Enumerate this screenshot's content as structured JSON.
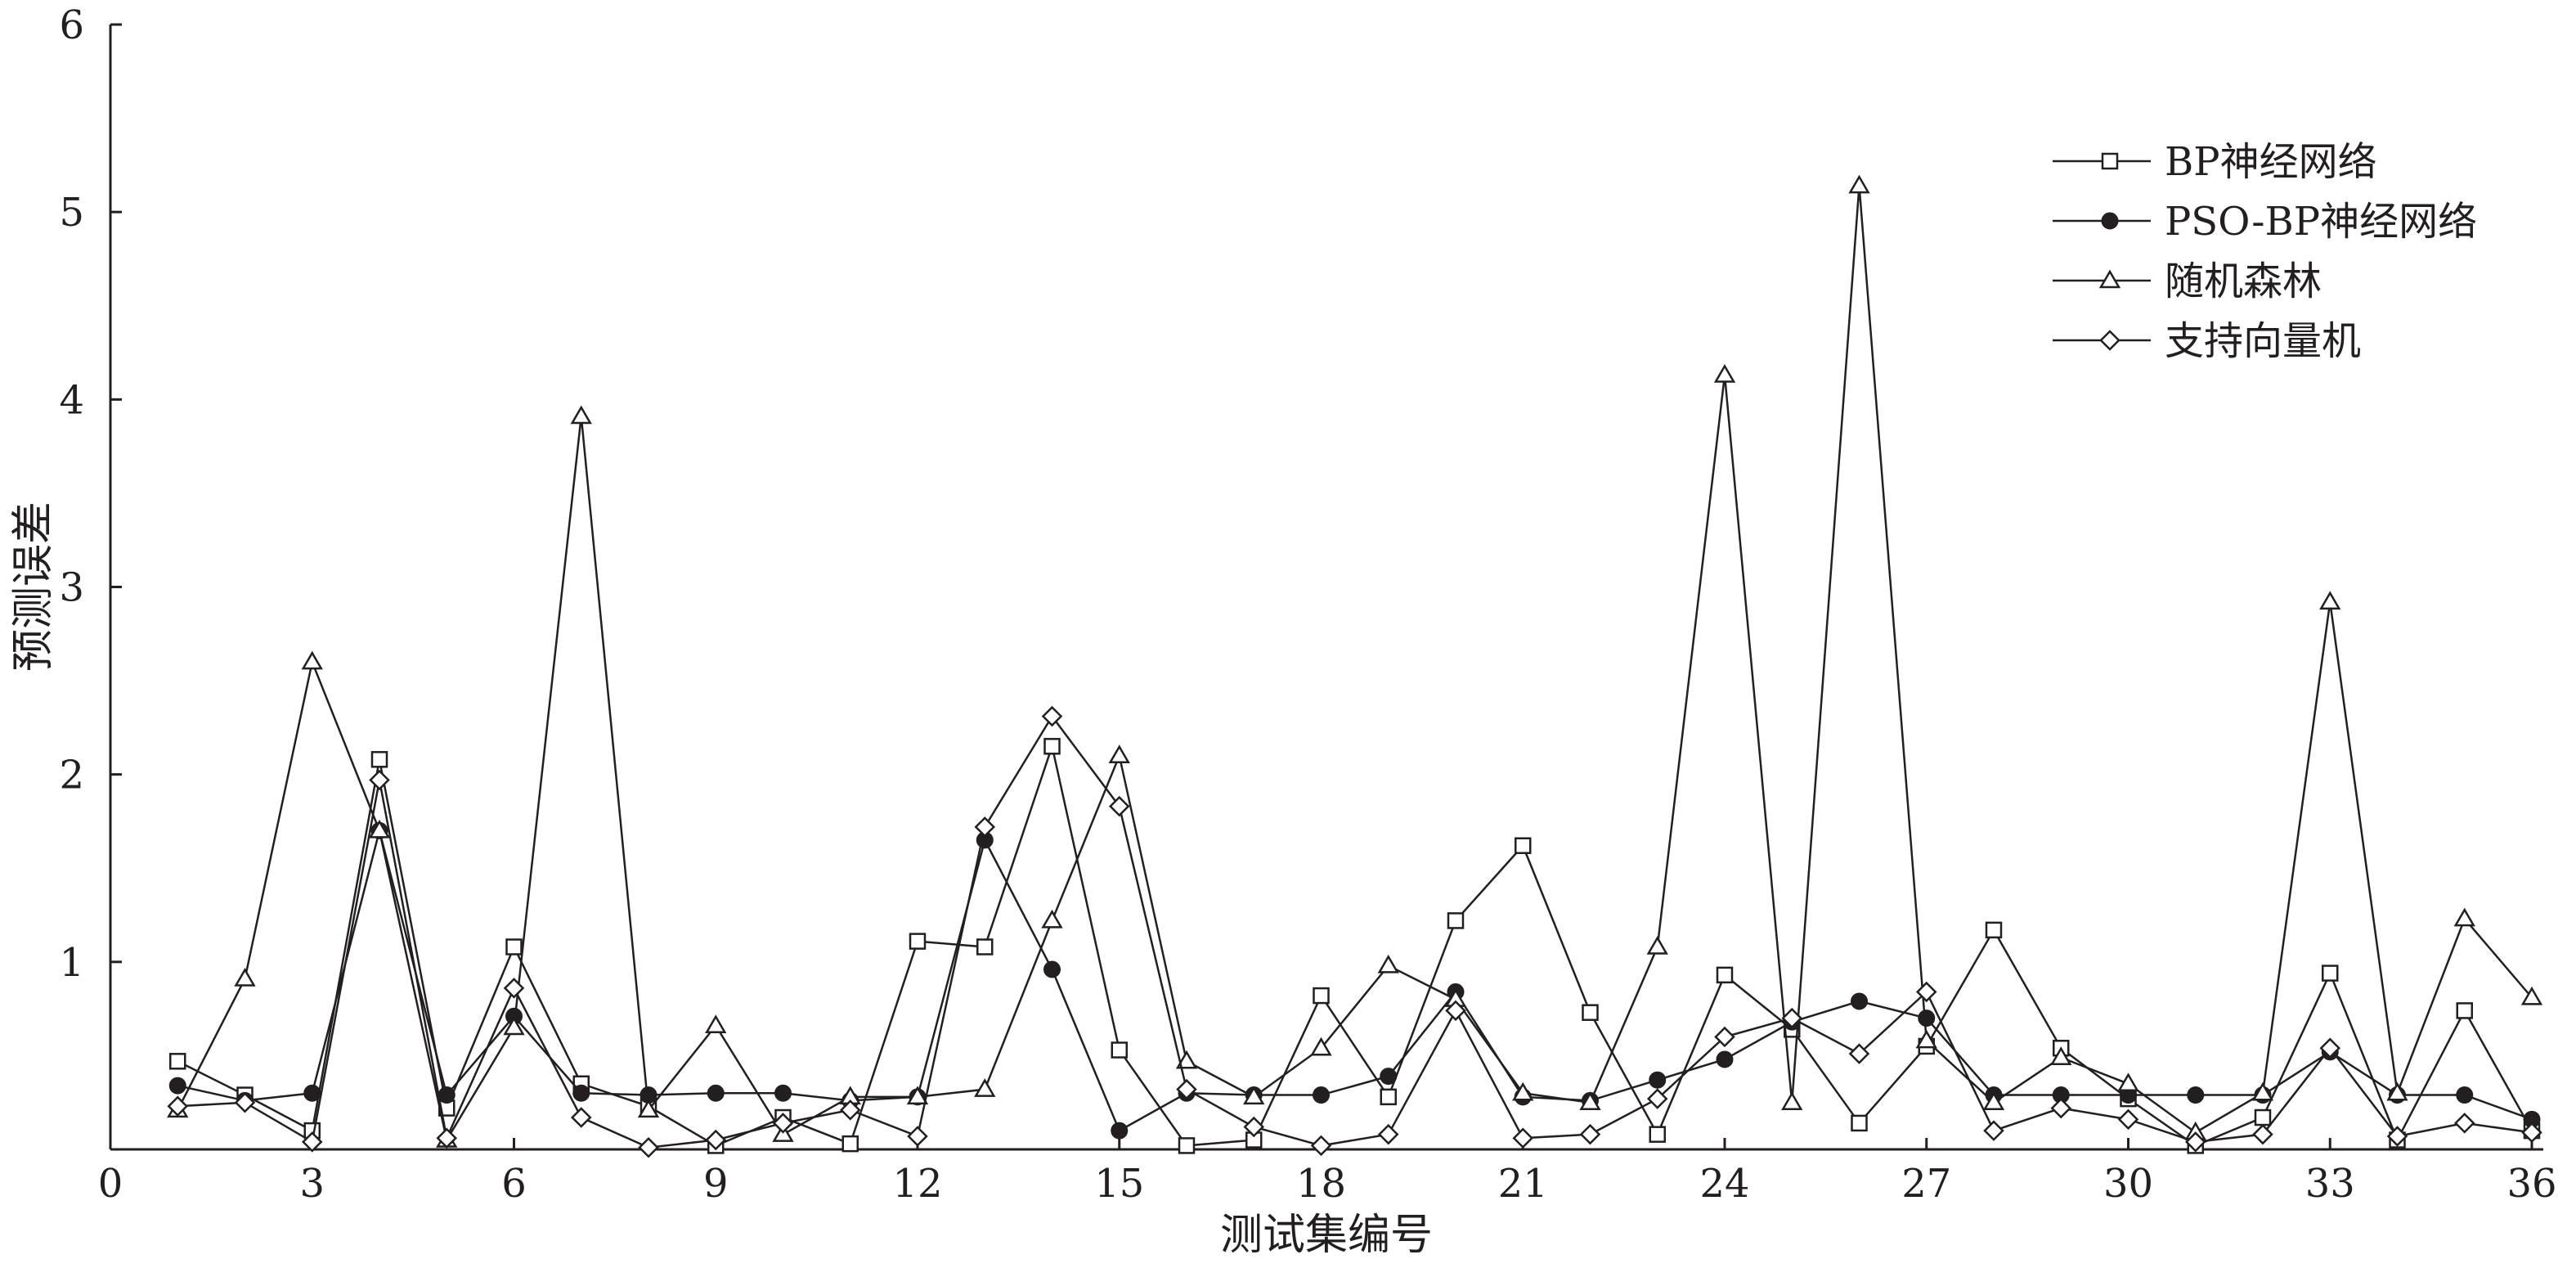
{
  "chart_data": {
    "type": "line",
    "title": "",
    "xlabel": "测试集编号",
    "ylabel": "预测误差",
    "xlim": [
      0,
      36
    ],
    "ylim": [
      0,
      6
    ],
    "xticks": [
      0,
      3,
      6,
      9,
      12,
      15,
      18,
      21,
      24,
      27,
      30,
      33,
      36
    ],
    "yticks": [
      1,
      2,
      3,
      4,
      5,
      6
    ],
    "grid": false,
    "legend_position": "top-right",
    "x": [
      1,
      2,
      3,
      4,
      5,
      6,
      7,
      8,
      9,
      10,
      11,
      12,
      13,
      14,
      15,
      16,
      17,
      18,
      19,
      20,
      21,
      22,
      23,
      24,
      25,
      26,
      27,
      28,
      29,
      30,
      31,
      32,
      33,
      34,
      35,
      36
    ],
    "series": [
      {
        "name": "BP神经网络",
        "marker": "square-open",
        "values": [
          0.47,
          0.29,
          0.1,
          2.08,
          0.22,
          1.08,
          0.35,
          0.23,
          0.02,
          0.17,
          0.03,
          1.11,
          1.08,
          2.15,
          0.53,
          0.02,
          0.05,
          0.82,
          0.28,
          1.22,
          1.62,
          0.73,
          0.08,
          0.93,
          0.64,
          0.14,
          0.55,
          1.17,
          0.54,
          0.27,
          0.02,
          0.17,
          0.94,
          0.05,
          0.74,
          0.1
        ]
      },
      {
        "name": "PSO-BP神经网络",
        "marker": "circle-filled",
        "values": [
          0.34,
          0.26,
          0.3,
          1.7,
          0.29,
          0.71,
          0.3,
          0.29,
          0.3,
          0.3,
          0.26,
          0.28,
          1.65,
          0.96,
          0.1,
          0.3,
          0.29,
          0.29,
          0.39,
          0.84,
          0.28,
          0.26,
          0.37,
          0.48,
          0.68,
          0.79,
          0.7,
          0.29,
          0.29,
          0.29,
          0.29,
          0.29,
          0.52,
          0.29,
          0.29,
          0.16
        ]
      },
      {
        "name": "随机森林",
        "marker": "triangle-open",
        "values": [
          0.21,
          0.91,
          2.6,
          1.7,
          0.05,
          0.65,
          3.91,
          0.21,
          0.66,
          0.08,
          0.28,
          0.28,
          0.32,
          1.22,
          2.1,
          0.47,
          0.28,
          0.54,
          0.98,
          0.8,
          0.3,
          0.25,
          1.08,
          4.13,
          0.25,
          5.14,
          0.58,
          0.25,
          0.49,
          0.35,
          0.09,
          0.3,
          2.92,
          0.3,
          1.23,
          0.81
        ]
      },
      {
        "name": "支持向量机",
        "marker": "diamond-open",
        "values": [
          0.23,
          0.25,
          0.04,
          1.97,
          0.06,
          0.86,
          0.17,
          0.01,
          0.05,
          0.14,
          0.21,
          0.07,
          1.72,
          2.31,
          1.83,
          0.32,
          0.12,
          0.02,
          0.08,
          0.74,
          0.06,
          0.08,
          0.27,
          0.6,
          0.7,
          0.51,
          0.84,
          0.1,
          0.22,
          0.16,
          0.04,
          0.08,
          0.54,
          0.07,
          0.14,
          0.09
        ]
      }
    ]
  }
}
